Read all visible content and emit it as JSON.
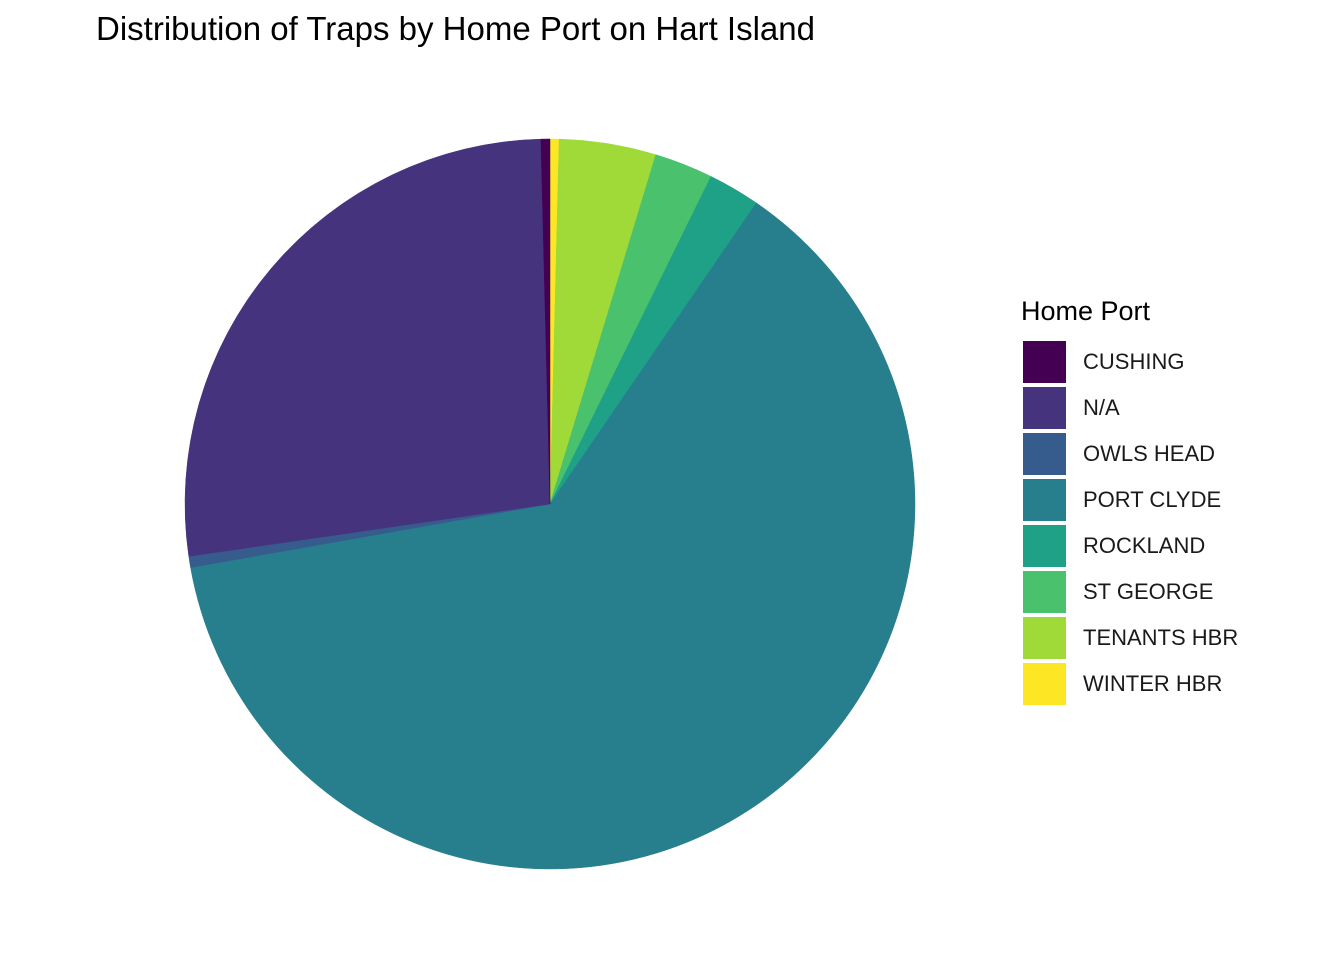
{
  "chart_data": {
    "type": "pie",
    "title": "Distribution of Traps by Home Port on Hart Island",
    "legend_title": "Home Port",
    "legend_position": "right",
    "start": "top, clockwise",
    "slices": [
      {
        "label": "CUSHING",
        "value": 0.4,
        "color": "#440154"
      },
      {
        "label": "N/A",
        "value": 27.0,
        "color": "#46337E"
      },
      {
        "label": "OWLS HEAD",
        "value": 0.5,
        "color": "#365C8D"
      },
      {
        "label": "PORT CLYDE",
        "value": 62.9,
        "color": "#277F8E"
      },
      {
        "label": "ROCKLAND",
        "value": 2.3,
        "color": "#1FA187"
      },
      {
        "label": "ST GEORGE",
        "value": 2.6,
        "color": "#4AC16D"
      },
      {
        "label": "TENANTS HBR",
        "value": 4.3,
        "color": "#A0DA39"
      },
      {
        "label": "WINTER HBR",
        "value": 0.4,
        "color": "#FDE725"
      }
    ],
    "draw_order": [
      "WINTER HBR",
      "TENANTS HBR",
      "ST GEORGE",
      "ROCKLAND",
      "PORT CLYDE",
      "OWLS HEAD",
      "N/A",
      "CUSHING"
    ]
  }
}
